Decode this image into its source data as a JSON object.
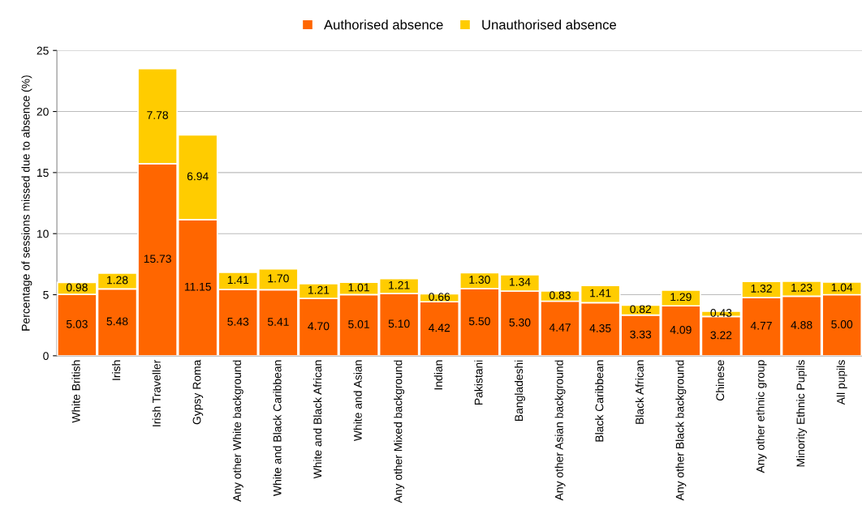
{
  "chart_data": {
    "type": "bar",
    "stacked": true,
    "ylabel": "Percentage of sessions missed due to absence (%)",
    "categories": [
      "White British",
      "Irish",
      "Irish Traveller",
      "Gypsy Roma",
      "Any other White background",
      "White and Black Caribbean",
      "White and Black African",
      "White and Asian",
      "Any other Mixed background",
      "Indian",
      "Pakistani",
      "Bangladeshi",
      "Any other Asian background",
      "Black Caribbean",
      "Black African",
      "Any other Black background",
      "Chinese",
      "Any other ethnic group",
      "Minority Ethnic Pupils",
      "All pupils"
    ],
    "series": [
      {
        "name": "Authorised absence",
        "color": "#ff6600",
        "values": [
          5.03,
          5.48,
          15.73,
          11.15,
          5.43,
          5.41,
          4.7,
          5.01,
          5.1,
          4.42,
          5.5,
          5.3,
          4.47,
          4.35,
          3.33,
          4.09,
          3.22,
          4.77,
          4.88,
          5.0
        ],
        "value_labels": [
          "5.03",
          "5.48",
          "15.73",
          "11.15",
          "5.43",
          "5.41",
          "4.70",
          "5.01",
          "5.10",
          "4.42",
          "5.50",
          "5.30",
          "4.47",
          "4.35",
          "3.33",
          "4.09",
          "3.22",
          "4.77",
          "4.88",
          "5.00"
        ]
      },
      {
        "name": "Unauthorised absence",
        "color": "#ffcc00",
        "values": [
          0.98,
          1.28,
          7.78,
          6.94,
          1.41,
          1.7,
          1.21,
          1.01,
          1.21,
          0.66,
          1.3,
          1.34,
          0.83,
          1.41,
          0.82,
          1.29,
          0.43,
          1.32,
          1.23,
          1.04
        ],
        "value_labels": [
          "0.98",
          "1.28",
          "7.78",
          "6.94",
          "1.41",
          "1.70",
          "1.21",
          "1.01",
          "1.21",
          "0.66",
          "1.30",
          "1.34",
          "0.83",
          "1.41",
          "0.82",
          "1.29",
          "0.43",
          "1.32",
          "1.23",
          "1.04"
        ]
      }
    ],
    "ylim": [
      0,
      25
    ],
    "yticks": [
      0,
      5,
      10,
      15,
      20,
      25
    ],
    "grid": "y",
    "legend": "top"
  }
}
